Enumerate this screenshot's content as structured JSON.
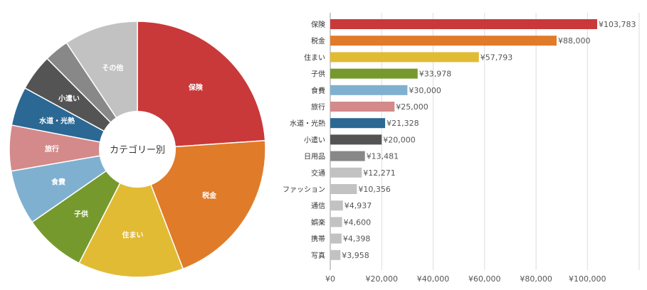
{
  "chart_data": [
    {
      "type": "pie",
      "center_label": "カテゴリー別",
      "slices": [
        {
          "label": "保険",
          "value": 103783,
          "color": "#c9393a",
          "show_label": true
        },
        {
          "label": "税金",
          "value": 88000,
          "color": "#e07b2a",
          "show_label": true
        },
        {
          "label": "住まい",
          "value": 57793,
          "color": "#e2bb34",
          "show_label": true
        },
        {
          "label": "子供",
          "value": 33978,
          "color": "#76992d",
          "show_label": true
        },
        {
          "label": "食費",
          "value": 30000,
          "color": "#7fb0d0",
          "show_label": true
        },
        {
          "label": "旅行",
          "value": 25000,
          "color": "#d48a8a",
          "show_label": true
        },
        {
          "label": "水道・光熱",
          "value": 21328,
          "color": "#2b6894",
          "show_label": true
        },
        {
          "label": "小遣い",
          "value": 20000,
          "color": "#545454",
          "show_label": true
        },
        {
          "label": "",
          "value": 13481,
          "color": "#888888",
          "show_label": false
        },
        {
          "label": "その他",
          "value": 40520,
          "color": "#c2c2c2",
          "show_label": true
        }
      ]
    },
    {
      "type": "bar",
      "orientation": "horizontal",
      "categories": [
        "保険",
        "税金",
        "住まい",
        "子供",
        "食費",
        "旅行",
        "水道・光熱",
        "小遣い",
        "日用品",
        "交通",
        "ファッション",
        "通信",
        "娯楽",
        "携帯",
        "写真"
      ],
      "values": [
        103783,
        88000,
        57793,
        33978,
        30000,
        25000,
        21328,
        20000,
        13481,
        12271,
        10356,
        4937,
        4600,
        4398,
        3958
      ],
      "value_labels": [
        "¥103,783",
        "¥88,000",
        "¥57,793",
        "¥33,978",
        "¥30,000",
        "¥25,000",
        "¥21,328",
        "¥20,000",
        "¥13,481",
        "¥12,271",
        "¥10,356",
        "¥4,937",
        "¥4,600",
        "¥4,398",
        "¥3,958"
      ],
      "colors": [
        "#c9393a",
        "#e07b2a",
        "#e2bb34",
        "#76992d",
        "#7fb0d0",
        "#d48a8a",
        "#2b6894",
        "#545454",
        "#888888",
        "#c2c2c2",
        "#c2c2c2",
        "#c2c2c2",
        "#c2c2c2",
        "#c2c2c2",
        "#c2c2c2"
      ],
      "xlim": [
        0,
        120000
      ],
      "x_ticks": [
        0,
        20000,
        40000,
        60000,
        80000,
        100000
      ],
      "x_tick_labels": [
        "¥0",
        "¥20,000",
        "¥40,000",
        "¥60,000",
        "¥80,000",
        "¥100,000"
      ],
      "grid": true
    }
  ]
}
